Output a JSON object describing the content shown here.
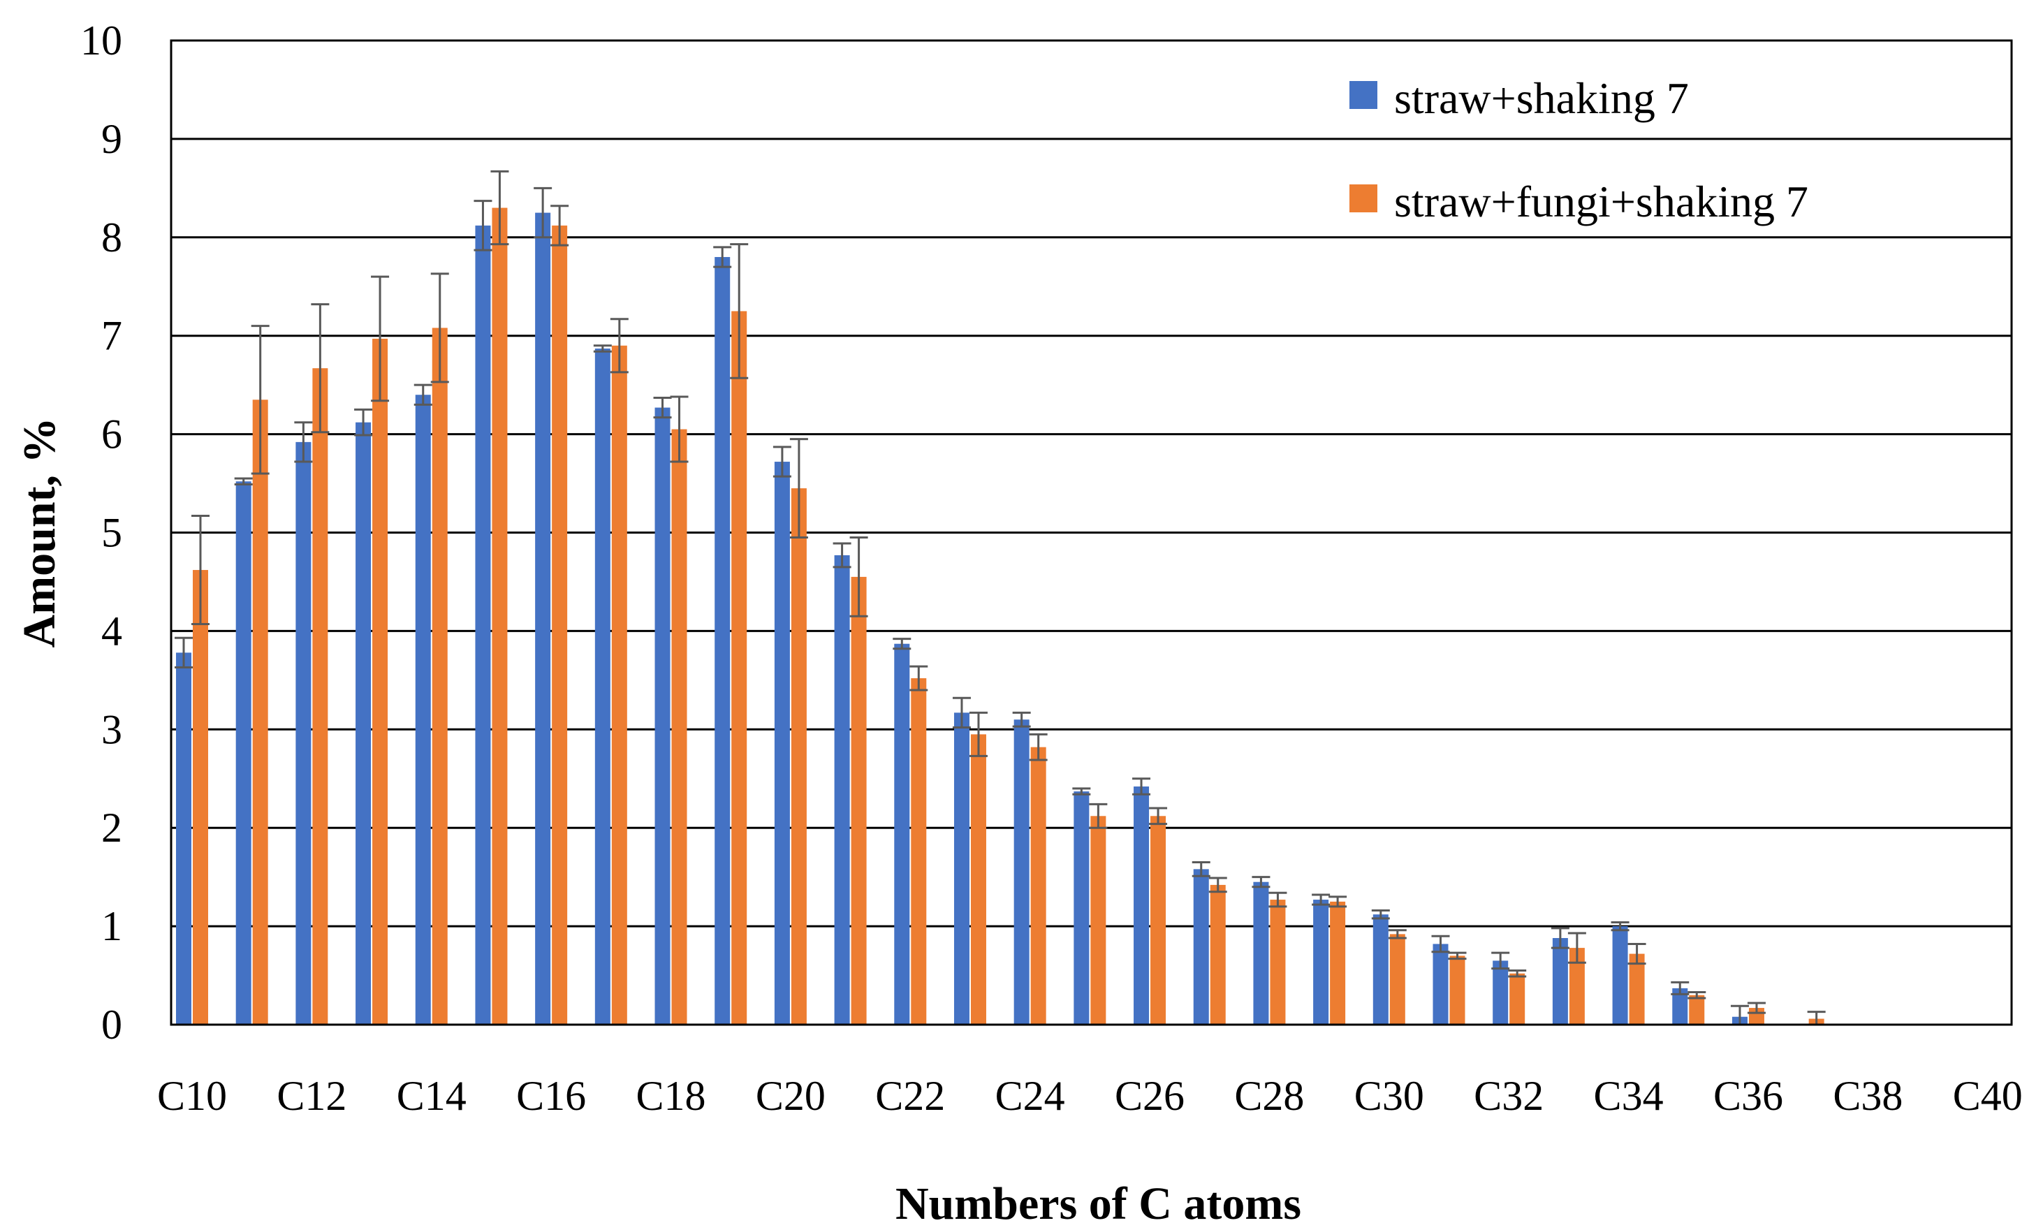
{
  "chart_data": {
    "type": "bar",
    "title": "",
    "xlabel": "Numbers of C atoms",
    "ylabel": "Amount, %",
    "ylim": [
      0,
      10
    ],
    "yticks": [
      "0",
      "1",
      "2",
      "3",
      "4",
      "5",
      "6",
      "7",
      "8",
      "9",
      "10"
    ],
    "grid": true,
    "legend_position": "top-right",
    "categories": [
      "C10",
      "C11",
      "C12",
      "C13",
      "C14",
      "C15",
      "C16",
      "C17",
      "C18",
      "C19",
      "C20",
      "C21",
      "C22",
      "C23",
      "C24",
      "C25",
      "C26",
      "C27",
      "C28",
      "C29",
      "C30",
      "C31",
      "C32",
      "C33",
      "C34",
      "C35",
      "C36",
      "C37",
      "C38",
      "C39",
      "C40"
    ],
    "category_labels": [
      "C10",
      "",
      "C12",
      "",
      "C14",
      "",
      "C16",
      "",
      "C18",
      "",
      "C20",
      "",
      "C22",
      "",
      "C24",
      "",
      "C26",
      "",
      "C28",
      "",
      "C30",
      "",
      "C32",
      "",
      "C34",
      "",
      "C36",
      "",
      "C38",
      "",
      "C40"
    ],
    "series": [
      {
        "name": "straw+shaking 7",
        "color": "#4472C4",
        "values": [
          3.78,
          5.52,
          5.92,
          6.12,
          6.4,
          8.12,
          8.25,
          6.87,
          6.27,
          7.8,
          5.72,
          4.77,
          3.87,
          3.17,
          3.1,
          2.37,
          2.42,
          1.58,
          1.45,
          1.27,
          1.12,
          0.82,
          0.65,
          0.88,
          1.0,
          0.37,
          0.08,
          0.0,
          0.0,
          0.0,
          0.0
        ],
        "errors": [
          0.15,
          0.03,
          0.2,
          0.13,
          0.1,
          0.25,
          0.25,
          0.03,
          0.1,
          0.1,
          0.15,
          0.12,
          0.05,
          0.15,
          0.07,
          0.03,
          0.08,
          0.07,
          0.05,
          0.05,
          0.04,
          0.08,
          0.08,
          0.1,
          0.04,
          0.06,
          0.11,
          0,
          0,
          0,
          0
        ]
      },
      {
        "name": "straw+fungi+shaking 7",
        "color": "#ED7D31",
        "values": [
          4.62,
          6.35,
          6.67,
          6.97,
          7.08,
          8.3,
          8.12,
          6.9,
          6.05,
          7.25,
          5.45,
          4.55,
          3.52,
          2.95,
          2.82,
          2.12,
          2.12,
          1.42,
          1.27,
          1.25,
          0.92,
          0.7,
          0.52,
          0.78,
          0.72,
          0.3,
          0.17,
          0.06,
          0.0,
          0.0,
          0.0
        ],
        "errors": [
          0.55,
          0.75,
          0.65,
          0.63,
          0.55,
          0.37,
          0.2,
          0.27,
          0.33,
          0.68,
          0.5,
          0.4,
          0.12,
          0.22,
          0.13,
          0.12,
          0.08,
          0.07,
          0.07,
          0.05,
          0.04,
          0.03,
          0.03,
          0.15,
          0.1,
          0.03,
          0.05,
          0.07,
          0,
          0,
          0
        ]
      }
    ]
  }
}
